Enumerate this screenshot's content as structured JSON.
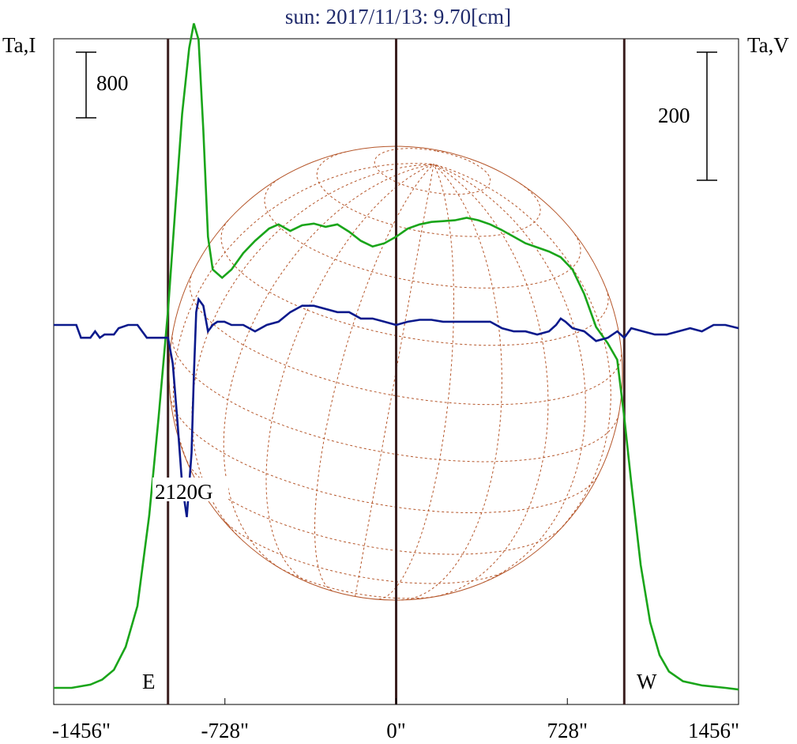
{
  "title": "sun: 2017/11/13: 9.70[cm]",
  "left_axis_label": "Ta,I",
  "right_axis_label": "Ta,V",
  "colors": {
    "intensity": "#1aa51a",
    "polarization": "#0b1a8c",
    "limb_line": "#3a1f1f",
    "globe": "#b5562a",
    "title": "#1f2a6b"
  },
  "chart_data": {
    "type": "line",
    "xlim": [
      -1456,
      1456
    ],
    "x_ticks": [
      -1456,
      -728,
      0,
      728,
      1456
    ],
    "x_tick_labels": [
      "-1456\"",
      "-728\"",
      "0\"",
      "728\"",
      "1456\""
    ],
    "limb_lines": [
      -970,
      0,
      970
    ],
    "limb_labels": {
      "east": "E",
      "west": "W"
    },
    "scale_bars": [
      {
        "label": "800",
        "axis": "left",
        "units_value": 800
      },
      {
        "label": "200",
        "axis": "right",
        "units_value": 200
      }
    ],
    "annotation": {
      "text": "2120G",
      "x": -880
    },
    "series": [
      {
        "key": "intensity",
        "unit": "Ta,I",
        "points": [
          [
            -1456,
            0
          ],
          [
            -1380,
            0
          ],
          [
            -1300,
            40
          ],
          [
            -1250,
            100
          ],
          [
            -1200,
            220
          ],
          [
            -1150,
            500
          ],
          [
            -1100,
            1000
          ],
          [
            -1050,
            2100
          ],
          [
            -1010,
            3300
          ],
          [
            -970,
            4600
          ],
          [
            -940,
            5800
          ],
          [
            -910,
            7000
          ],
          [
            -880,
            7800
          ],
          [
            -860,
            8100
          ],
          [
            -840,
            7900
          ],
          [
            -820,
            6800
          ],
          [
            -800,
            5500
          ],
          [
            -780,
            5100
          ],
          [
            -740,
            5000
          ],
          [
            -700,
            5100
          ],
          [
            -650,
            5300
          ],
          [
            -600,
            5450
          ],
          [
            -540,
            5600
          ],
          [
            -500,
            5650
          ],
          [
            -450,
            5570
          ],
          [
            -400,
            5640
          ],
          [
            -350,
            5660
          ],
          [
            -300,
            5620
          ],
          [
            -250,
            5650
          ],
          [
            -200,
            5560
          ],
          [
            -150,
            5450
          ],
          [
            -100,
            5380
          ],
          [
            -50,
            5420
          ],
          [
            0,
            5500
          ],
          [
            50,
            5600
          ],
          [
            100,
            5650
          ],
          [
            150,
            5680
          ],
          [
            200,
            5690
          ],
          [
            250,
            5700
          ],
          [
            300,
            5730
          ],
          [
            350,
            5700
          ],
          [
            400,
            5650
          ],
          [
            450,
            5580
          ],
          [
            500,
            5500
          ],
          [
            550,
            5420
          ],
          [
            600,
            5370
          ],
          [
            650,
            5320
          ],
          [
            700,
            5250
          ],
          [
            750,
            5100
          ],
          [
            800,
            4800
          ],
          [
            850,
            4400
          ],
          [
            900,
            4200
          ],
          [
            940,
            4000
          ],
          [
            970,
            3300
          ],
          [
            1000,
            2500
          ],
          [
            1040,
            1500
          ],
          [
            1080,
            800
          ],
          [
            1120,
            400
          ],
          [
            1160,
            200
          ],
          [
            1220,
            80
          ],
          [
            1300,
            30
          ],
          [
            1400,
            0
          ],
          [
            1456,
            -20
          ]
        ]
      },
      {
        "key": "polarization",
        "unit": "Ta,V",
        "points": [
          [
            -1456,
            0
          ],
          [
            -1360,
            0
          ],
          [
            -1340,
            -20
          ],
          [
            -1300,
            -20
          ],
          [
            -1280,
            -10
          ],
          [
            -1260,
            -20
          ],
          [
            -1240,
            -15
          ],
          [
            -1200,
            -15
          ],
          [
            -1180,
            -5
          ],
          [
            -1140,
            0
          ],
          [
            -1100,
            0
          ],
          [
            -1060,
            -20
          ],
          [
            -1000,
            -20
          ],
          [
            -970,
            -20
          ],
          [
            -950,
            -60
          ],
          [
            -930,
            -150
          ],
          [
            -910,
            -250
          ],
          [
            -890,
            -300
          ],
          [
            -870,
            -200
          ],
          [
            -860,
            -80
          ],
          [
            -850,
            20
          ],
          [
            -840,
            40
          ],
          [
            -820,
            30
          ],
          [
            -800,
            -10
          ],
          [
            -780,
            0
          ],
          [
            -760,
            5
          ],
          [
            -730,
            5
          ],
          [
            -700,
            0
          ],
          [
            -650,
            0
          ],
          [
            -600,
            -10
          ],
          [
            -550,
            0
          ],
          [
            -500,
            5
          ],
          [
            -450,
            20
          ],
          [
            -400,
            30
          ],
          [
            -350,
            30
          ],
          [
            -300,
            25
          ],
          [
            -250,
            20
          ],
          [
            -200,
            20
          ],
          [
            -150,
            10
          ],
          [
            -100,
            10
          ],
          [
            -50,
            5
          ],
          [
            0,
            0
          ],
          [
            50,
            5
          ],
          [
            100,
            8
          ],
          [
            150,
            8
          ],
          [
            200,
            5
          ],
          [
            250,
            5
          ],
          [
            300,
            5
          ],
          [
            350,
            5
          ],
          [
            400,
            5
          ],
          [
            450,
            -5
          ],
          [
            500,
            -10
          ],
          [
            550,
            -10
          ],
          [
            600,
            -15
          ],
          [
            650,
            -10
          ],
          [
            680,
            0
          ],
          [
            700,
            10
          ],
          [
            720,
            5
          ],
          [
            750,
            -5
          ],
          [
            800,
            -10
          ],
          [
            850,
            -25
          ],
          [
            900,
            -20
          ],
          [
            940,
            -10
          ],
          [
            970,
            -20
          ],
          [
            1000,
            -5
          ],
          [
            1050,
            -10
          ],
          [
            1100,
            -15
          ],
          [
            1150,
            -15
          ],
          [
            1200,
            -10
          ],
          [
            1250,
            -5
          ],
          [
            1300,
            -10
          ],
          [
            1350,
            0
          ],
          [
            1400,
            0
          ],
          [
            1456,
            -5
          ]
        ]
      }
    ]
  }
}
